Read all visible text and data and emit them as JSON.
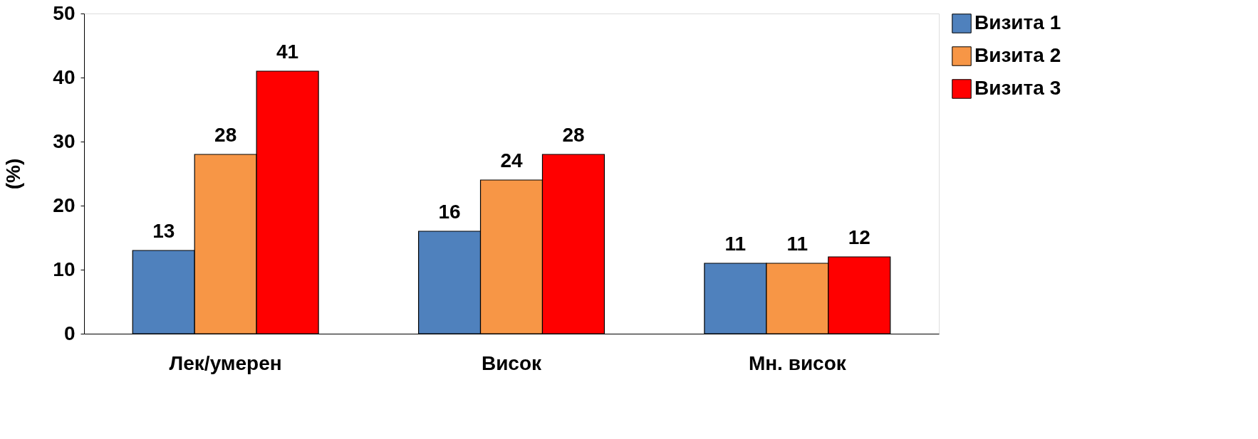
{
  "chart_data": {
    "type": "bar",
    "ylabel": "(%)",
    "categories": [
      "Лек/умерен",
      "Висок",
      "Мн. висок"
    ],
    "series": [
      {
        "name": "Визита 1",
        "color": "#4f81bd",
        "values": [
          13,
          16,
          11
        ]
      },
      {
        "name": "Визита 2",
        "color": "#f79646",
        "values": [
          28,
          24,
          11
        ]
      },
      {
        "name": "Визита 3",
        "color": "#ff0000",
        "values": [
          41,
          28,
          12
        ]
      }
    ],
    "ylim": [
      0,
      50
    ],
    "yticks": [
      0,
      10,
      20,
      30,
      40,
      50
    ],
    "grid": false,
    "legend": "right",
    "data_labels": true
  }
}
